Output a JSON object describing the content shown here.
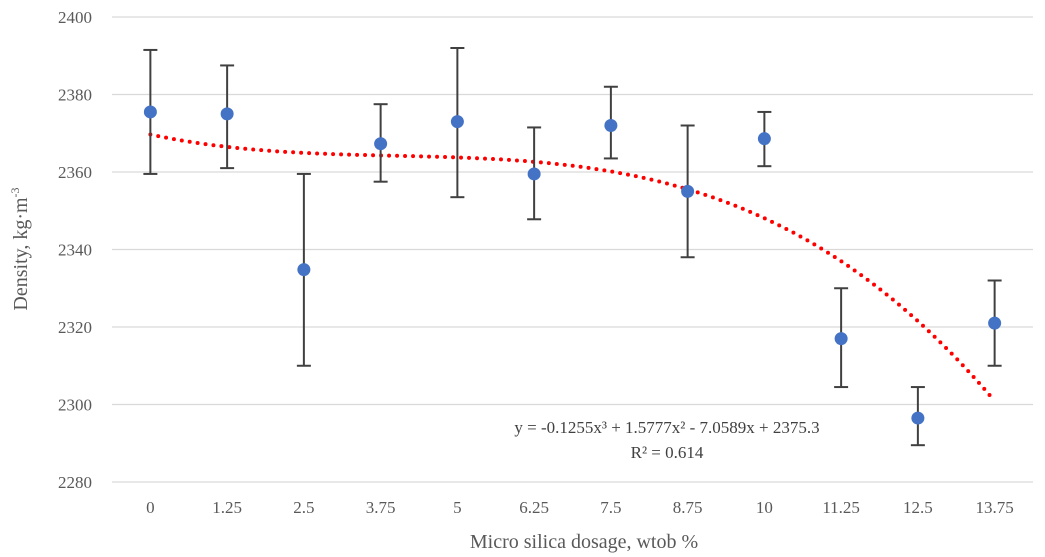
{
  "chart_data": {
    "type": "scatter",
    "title": "",
    "xlabel": "Micro silica dosage, wtob %",
    "ylabel": {
      "base": "Density, kg·m",
      "superscript": "-3"
    },
    "categories": [
      "0",
      "1.25",
      "2.5",
      "3.75",
      "5",
      "6.25",
      "7.5",
      "8.75",
      "10",
      "11.25",
      "12.5",
      "13.75"
    ],
    "ylim": [
      2280,
      2400
    ],
    "yticks": [
      2280,
      2300,
      2320,
      2340,
      2360,
      2380,
      2400
    ],
    "grid": true,
    "series": [
      {
        "values": [
          2375.5,
          2375,
          2334.8,
          2367.3,
          2373,
          2359.5,
          2372,
          2355,
          2368.6,
          2317,
          2296.5,
          2321
        ],
        "error_low": [
          2359.5,
          2361,
          2310,
          2357.5,
          2353.5,
          2347.8,
          2363.5,
          2338,
          2361.5,
          2304.5,
          2289.5,
          2310
        ],
        "error_high": [
          2391.5,
          2387.5,
          2359.5,
          2377.5,
          2392,
          2371.5,
          2382,
          2372,
          2375.5,
          2330,
          2304.5,
          2332
        ],
        "color": "#4472C4"
      }
    ],
    "trendline": {
      "type": "polynomial-3",
      "coefficients": {
        "a3": -0.1255,
        "a2": 1.5777,
        "a1": -7.0589,
        "a0": 2375.3
      },
      "color": "#FF0000",
      "style": "dotted"
    },
    "annotations": {
      "equation": "y = -0.1255x³ + 1.5777x² - 7.0589x + 2375.3",
      "r_squared": "R² = 0.614"
    },
    "colors": {
      "gridline": "#D9D9D9",
      "axis_text": "#595959",
      "error_bar": "#404040"
    }
  }
}
